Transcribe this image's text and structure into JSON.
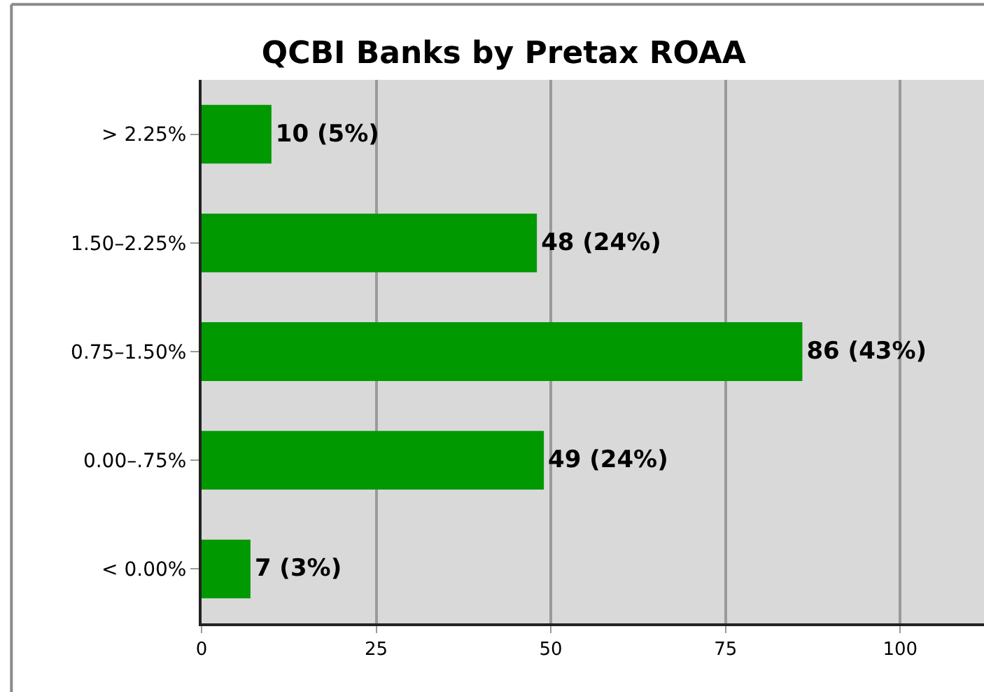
{
  "chart_data": {
    "type": "bar",
    "title": "QCBI Banks by Pretax ROAA",
    "orientation": "horizontal",
    "categories": [
      "> 2.25%",
      "1.50–2.25%",
      "0.75–1.50%",
      "0.00–.75%",
      "< 0.00%"
    ],
    "values": [
      10,
      48,
      86,
      49,
      7
    ],
    "value_labels": [
      "10 (5%)",
      "48 (24%)",
      "86 (43%)",
      "49 (24%)",
      "7 (3%)"
    ],
    "color": "#009900",
    "xlim": [
      0,
      112
    ],
    "xticks": [
      0,
      25,
      50,
      75,
      100
    ],
    "grid": "x",
    "legend": false
  }
}
